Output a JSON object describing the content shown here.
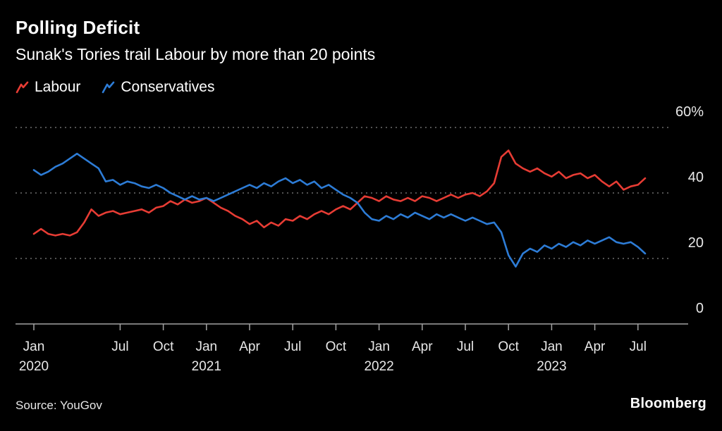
{
  "header": {
    "title": "Polling Deficit",
    "subtitle": "Sunak's Tories trail Labour by more than 20 points"
  },
  "legend": [
    {
      "label": "Labour",
      "color": "#e73c34"
    },
    {
      "label": "Conservatives",
      "color": "#2d7cd6"
    }
  ],
  "footer": {
    "source": "Source: YouGov",
    "brand": "Bloomberg"
  },
  "chart_data": {
    "type": "line",
    "title": "Polling Deficit",
    "subtitle": "Sunak's Tories trail Labour by more than 20 points",
    "x_unit": "months since Jan 2020",
    "x_start": 0,
    "x_step": 0.5,
    "ylim": [
      0,
      60
    ],
    "grid": "dotted horizontal gridlines at 20/40/60, solid baseline at 0",
    "legend_position": "top-left",
    "source": "YouGov",
    "y_ticks": [
      {
        "label": "60%",
        "value": 60
      },
      {
        "label": "40",
        "value": 40
      },
      {
        "label": "20",
        "value": 20
      },
      {
        "label": "0",
        "value": 0
      }
    ],
    "x_ticks": [
      {
        "label": "Jan",
        "year": "2020",
        "month": 0
      },
      {
        "label": "Jul",
        "month": 6
      },
      {
        "label": "Oct",
        "month": 9
      },
      {
        "label": "Jan",
        "year": "2021",
        "month": 12
      },
      {
        "label": "Apr",
        "month": 15
      },
      {
        "label": "Jul",
        "month": 18
      },
      {
        "label": "Oct",
        "month": 21
      },
      {
        "label": "Jan",
        "year": "2022",
        "month": 24
      },
      {
        "label": "Apr",
        "month": 27
      },
      {
        "label": "Jul",
        "month": 30
      },
      {
        "label": "Oct",
        "month": 33
      },
      {
        "label": "Jan",
        "year": "2023",
        "month": 36
      },
      {
        "label": "Apr",
        "month": 39
      },
      {
        "label": "Jul",
        "month": 42
      }
    ],
    "series": [
      {
        "name": "Labour",
        "color": "#e73c34",
        "values": [
          27.5,
          29,
          27.5,
          27,
          27.5,
          27,
          28,
          31,
          35,
          33,
          34,
          34.5,
          33.5,
          34,
          34.5,
          35,
          34,
          35.5,
          36,
          37.5,
          36.5,
          38,
          37,
          37.5,
          38.5,
          37,
          35.5,
          34.5,
          33,
          32,
          30.5,
          31.5,
          29.5,
          31,
          30,
          32,
          31.5,
          33,
          32,
          33.5,
          34.5,
          33.5,
          35,
          36,
          35,
          37,
          39,
          38.5,
          37.5,
          39,
          38,
          37.5,
          38.5,
          37.5,
          39,
          38.5,
          37.5,
          38.5,
          39.5,
          38.5,
          39.5,
          40,
          39,
          40.5,
          43,
          51,
          53,
          49,
          47.5,
          46.5,
          47.5,
          46,
          45,
          46.5,
          44.5,
          45.5,
          46,
          44.5,
          45.5,
          43.5,
          42,
          43.5,
          41,
          42,
          42.5,
          44.5
        ]
      },
      {
        "name": "Conservatives",
        "color": "#2d7cd6",
        "values": [
          47,
          45.5,
          46.5,
          48,
          49,
          50.5,
          52,
          50.5,
          49,
          47.5,
          43.5,
          44,
          42.5,
          43.5,
          43,
          42,
          41.5,
          42.5,
          41.5,
          40,
          39,
          38,
          39,
          38,
          38.5,
          37.5,
          38.5,
          39.5,
          40.5,
          41.5,
          42.5,
          41.5,
          43,
          42,
          43.5,
          44.5,
          43,
          44,
          42.5,
          43.5,
          41.5,
          42.5,
          41,
          39.5,
          38.5,
          37,
          34,
          32,
          31.5,
          33,
          32,
          33.5,
          32.5,
          34,
          33,
          32,
          33.5,
          32.5,
          33.5,
          32.5,
          31.5,
          32.5,
          31.5,
          30.5,
          31,
          28,
          21,
          17.5,
          21.5,
          23,
          22,
          24,
          23,
          24.5,
          23.5,
          25,
          24,
          25.5,
          24.5,
          25.5,
          26.5,
          25,
          24.5,
          25,
          23.5,
          21.5
        ]
      }
    ]
  }
}
